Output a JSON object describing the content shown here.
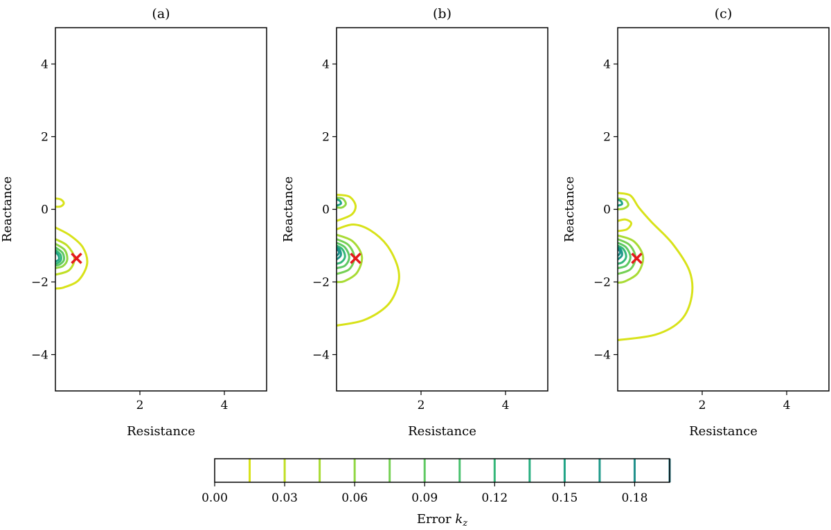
{
  "chart_data": {
    "type": "contour",
    "panels": [
      {
        "title": "(a)",
        "xlabel": "Resistance",
        "ylabel": "Reactance",
        "xlim": [
          0,
          5
        ],
        "ylim": [
          -5,
          5
        ],
        "xticks": [
          2,
          4
        ],
        "yticks": [
          4,
          2,
          0,
          -2,
          -4
        ],
        "marker": {
          "symbol": "x",
          "x": 0.5,
          "y": -1.35,
          "color": "#e41a1c"
        },
        "contours": [
          {
            "level": 0.015,
            "points": [
              [
                0,
                -0.5
              ],
              [
                0.35,
                -0.72
              ],
              [
                0.65,
                -1.05
              ],
              [
                0.75,
                -1.5
              ],
              [
                0.55,
                -1.95
              ],
              [
                0.2,
                -2.15
              ],
              [
                0,
                -2.18
              ]
            ]
          },
          {
            "level": 0.015,
            "points": [
              [
                0,
                0.3
              ],
              [
                0.13,
                0.27
              ],
              [
                0.2,
                0.17
              ],
              [
                0.13,
                0.08
              ],
              [
                0,
                0.07
              ]
            ]
          },
          {
            "level": 0.03,
            "points": [
              [
                0,
                -0.82
              ],
              [
                0.28,
                -1.0
              ],
              [
                0.45,
                -1.35
              ],
              [
                0.32,
                -1.68
              ],
              [
                0,
                -1.8
              ]
            ]
          },
          {
            "level": 0.06,
            "points": [
              [
                0,
                -0.95
              ],
              [
                0.22,
                -1.12
              ],
              [
                0.28,
                -1.38
              ],
              [
                0.18,
                -1.56
              ],
              [
                0,
                -1.62
              ]
            ]
          },
          {
            "level": 0.09,
            "points": [
              [
                0,
                -1.05
              ],
              [
                0.17,
                -1.2
              ],
              [
                0.2,
                -1.4
              ],
              [
                0.1,
                -1.52
              ],
              [
                0,
                -1.55
              ]
            ]
          },
          {
            "level": 0.12,
            "points": [
              [
                0,
                -1.12
              ],
              [
                0.12,
                -1.25
              ],
              [
                0.13,
                -1.4
              ],
              [
                0.05,
                -1.48
              ],
              [
                0,
                -1.5
              ]
            ]
          },
          {
            "level": 0.15,
            "points": [
              [
                0,
                -1.18
              ],
              [
                0.07,
                -1.27
              ],
              [
                0.08,
                -1.38
              ],
              [
                0,
                -1.44
              ]
            ]
          }
        ]
      },
      {
        "title": "(b)",
        "xlabel": "Resistance",
        "ylabel": "Reactance",
        "xlim": [
          0,
          5
        ],
        "ylim": [
          -5,
          5
        ],
        "xticks": [
          2,
          4
        ],
        "yticks": [
          4,
          2,
          0,
          -2,
          -4
        ],
        "marker": {
          "symbol": "x",
          "x": 0.45,
          "y": -1.35,
          "color": "#e41a1c"
        },
        "contours": [
          {
            "level": 0.015,
            "points": [
              [
                0,
                -0.55
              ],
              [
                0.4,
                -0.42
              ],
              [
                0.8,
                -0.58
              ],
              [
                1.2,
                -1.0
              ],
              [
                1.45,
                -1.6
              ],
              [
                1.45,
                -2.1
              ],
              [
                1.2,
                -2.65
              ],
              [
                0.65,
                -3.05
              ],
              [
                0,
                -3.2
              ]
            ]
          },
          {
            "level": 0.015,
            "points": [
              [
                0,
                0.4
              ],
              [
                0.3,
                0.35
              ],
              [
                0.45,
                0.1
              ],
              [
                0.35,
                -0.15
              ],
              [
                0,
                -0.32
              ]
            ]
          },
          {
            "level": 0.06,
            "points": [
              [
                0,
                0.32
              ],
              [
                0.15,
                0.29
              ],
              [
                0.22,
                0.15
              ],
              [
                0.13,
                0.05
              ],
              [
                0,
                0.05
              ]
            ]
          },
          {
            "level": 0.15,
            "points": [
              [
                0,
                0.28
              ],
              [
                0.08,
                0.23
              ],
              [
                0.1,
                0.15
              ],
              [
                0,
                0.1
              ]
            ]
          },
          {
            "level": 0.045,
            "points": [
              [
                0,
                -0.7
              ],
              [
                0.38,
                -0.88
              ],
              [
                0.6,
                -1.3
              ],
              [
                0.48,
                -1.75
              ],
              [
                0.18,
                -1.98
              ],
              [
                0,
                -2.0
              ]
            ]
          },
          {
            "level": 0.075,
            "points": [
              [
                0,
                -0.82
              ],
              [
                0.28,
                -0.98
              ],
              [
                0.42,
                -1.32
              ],
              [
                0.3,
                -1.65
              ],
              [
                0,
                -1.78
              ]
            ]
          },
          {
            "level": 0.09,
            "points": [
              [
                0,
                -0.92
              ],
              [
                0.2,
                -1.05
              ],
              [
                0.3,
                -1.32
              ],
              [
                0.2,
                -1.55
              ],
              [
                0,
                -1.62
              ]
            ]
          },
          {
            "level": 0.12,
            "points": [
              [
                0,
                -1.0
              ],
              [
                0.14,
                -1.1
              ],
              [
                0.2,
                -1.3
              ],
              [
                0.12,
                -1.45
              ],
              [
                0,
                -1.5
              ]
            ]
          },
          {
            "level": 0.165,
            "points": [
              [
                0,
                -1.05
              ],
              [
                0.08,
                -1.12
              ],
              [
                0.1,
                -1.27
              ],
              [
                0,
                -1.38
              ]
            ]
          },
          {
            "level": 0.18,
            "points": [
              [
                0,
                -1.1
              ],
              [
                0.05,
                -1.15
              ],
              [
                0.05,
                -1.22
              ],
              [
                0,
                -1.28
              ]
            ]
          }
        ]
      },
      {
        "title": "(c)",
        "xlabel": "Resistance",
        "ylabel": "Reactance",
        "xlim": [
          0,
          5
        ],
        "ylim": [
          -5,
          5
        ],
        "xticks": [
          2,
          4
        ],
        "yticks": [
          4,
          2,
          0,
          -2,
          -4
        ],
        "marker": {
          "symbol": "x",
          "x": 0.45,
          "y": -1.35,
          "color": "#e41a1c"
        },
        "contours": [
          {
            "level": 0.015,
            "points": [
              [
                0,
                0.45
              ],
              [
                0.3,
                0.38
              ],
              [
                0.5,
                0.05
              ],
              [
                0.8,
                -0.35
              ],
              [
                1.3,
                -0.95
              ],
              [
                1.7,
                -1.7
              ],
              [
                1.75,
                -2.4
              ],
              [
                1.5,
                -3.05
              ],
              [
                0.9,
                -3.45
              ],
              [
                0,
                -3.6
              ]
            ]
          },
          {
            "level": 0.015,
            "points": [
              [
                0,
                -0.32
              ],
              [
                0.18,
                -0.28
              ],
              [
                0.32,
                -0.38
              ],
              [
                0.22,
                -0.55
              ],
              [
                0,
                -0.6
              ]
            ]
          },
          {
            "level": 0.045,
            "points": [
              [
                0,
                0.3
              ],
              [
                0.18,
                0.26
              ],
              [
                0.25,
                0.12
              ],
              [
                0.15,
                0.02
              ],
              [
                0,
                0.0
              ]
            ]
          },
          {
            "level": 0.15,
            "points": [
              [
                0,
                0.27
              ],
              [
                0.08,
                0.22
              ],
              [
                0.1,
                0.14
              ],
              [
                0,
                0.1
              ]
            ]
          },
          {
            "level": 0.045,
            "points": [
              [
                0,
                -0.72
              ],
              [
                0.38,
                -0.88
              ],
              [
                0.6,
                -1.3
              ],
              [
                0.48,
                -1.75
              ],
              [
                0.18,
                -1.98
              ],
              [
                0,
                -2.02
              ]
            ]
          },
          {
            "level": 0.075,
            "points": [
              [
                0,
                -0.82
              ],
              [
                0.28,
                -0.98
              ],
              [
                0.42,
                -1.32
              ],
              [
                0.3,
                -1.65
              ],
              [
                0,
                -1.78
              ]
            ]
          },
          {
            "level": 0.09,
            "points": [
              [
                0,
                -0.92
              ],
              [
                0.2,
                -1.05
              ],
              [
                0.3,
                -1.32
              ],
              [
                0.2,
                -1.55
              ],
              [
                0,
                -1.62
              ]
            ]
          },
          {
            "level": 0.12,
            "points": [
              [
                0,
                -1.0
              ],
              [
                0.14,
                -1.1
              ],
              [
                0.2,
                -1.3
              ],
              [
                0.12,
                -1.45
              ],
              [
                0,
                -1.5
              ]
            ]
          },
          {
            "level": 0.165,
            "points": [
              [
                0,
                -1.05
              ],
              [
                0.08,
                -1.12
              ],
              [
                0.1,
                -1.27
              ],
              [
                0,
                -1.38
              ]
            ]
          },
          {
            "level": 0.18,
            "points": [
              [
                0,
                -1.1
              ],
              [
                0.05,
                -1.15
              ],
              [
                0.05,
                -1.22
              ],
              [
                0,
                -1.28
              ]
            ]
          }
        ]
      }
    ],
    "colorbar": {
      "label_prefix": "Error ",
      "label_symbol": "k",
      "label_subscript": "z",
      "range": [
        0,
        0.195
      ],
      "levels": [
        0.015,
        0.03,
        0.045,
        0.06,
        0.075,
        0.09,
        0.105,
        0.12,
        0.135,
        0.15,
        0.165,
        0.18,
        0.195
      ],
      "level_colors": [
        "#d8e219",
        "#c0df25",
        "#a8db34",
        "#90d743",
        "#75d054",
        "#5ec962",
        "#48c16e",
        "#35b779",
        "#28ae80",
        "#20a486",
        "#1f9a8a",
        "#21918c",
        "#26828e"
      ],
      "ticks": [
        0,
        0.03,
        0.06,
        0.09,
        0.12,
        0.15,
        0.18
      ],
      "tick_labels": [
        "0.00",
        "0.03",
        "0.06",
        "0.09",
        "0.12",
        "0.15",
        "0.18"
      ]
    }
  }
}
